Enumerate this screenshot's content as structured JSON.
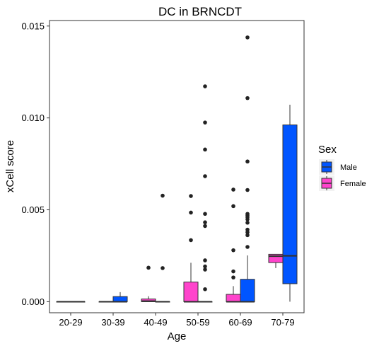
{
  "chart_data": {
    "type": "boxplot",
    "title": "DC in BRNCDT",
    "xlabel": "Age",
    "ylabel": "xCell score",
    "ylim": [
      -0.0006,
      0.0153
    ],
    "yticks": [
      "0.000",
      "0.005",
      "0.010",
      "0.015"
    ],
    "categories": [
      "20-29",
      "30-39",
      "40-49",
      "50-59",
      "60-69",
      "70-79"
    ],
    "legend": {
      "title": "Sex",
      "placement": "right",
      "entries": [
        {
          "name": "Male",
          "color": "#0055FF"
        },
        {
          "name": "Female",
          "color": "#FF44CC"
        }
      ]
    },
    "series": [
      {
        "name": "Female",
        "color": "#FF44CC",
        "boxes": [
          {
            "category": "20-29",
            "low": 0,
            "q1": 0,
            "median": 0,
            "q3": 0,
            "high": 0,
            "outliers": []
          },
          {
            "category": "30-39",
            "low": 0,
            "q1": 0,
            "median": 0,
            "q3": 0,
            "high": 0,
            "outliers": []
          },
          {
            "category": "40-49",
            "low": 0,
            "q1": 0,
            "median": 3e-05,
            "q3": 0.00015,
            "high": 0.0003,
            "outliers": [
              0.00185
            ]
          },
          {
            "category": "50-59",
            "low": 0,
            "q1": 0,
            "median": 0,
            "q3": 0.00107,
            "high": 0.00212,
            "outliers": [
              0.00335,
              0.00485,
              0.00575
            ]
          },
          {
            "category": "60-69",
            "low": 0,
            "q1": 0,
            "median": 0,
            "q3": 0.0004,
            "high": 0.00085,
            "outliers": [
              0.00132,
              0.00165,
              0.0028,
              0.0052,
              0.0061
            ]
          },
          {
            "category": "70-79",
            "low": 0.00183,
            "q1": 0.00213,
            "median": 0.00248,
            "q3": 0.00258,
            "high": 0.00258,
            "outliers": []
          }
        ]
      },
      {
        "name": "Male",
        "color": "#0055FF",
        "boxes": [
          {
            "category": "20-29",
            "low": 0,
            "q1": 0,
            "median": 0,
            "q3": 0,
            "high": 0,
            "outliers": []
          },
          {
            "category": "30-39",
            "low": 0,
            "q1": 0,
            "median": 0,
            "q3": 0.00028,
            "high": 0.00052,
            "outliers": []
          },
          {
            "category": "40-49",
            "low": 0,
            "q1": 0,
            "median": 0,
            "q3": 0,
            "high": 0,
            "outliers": [
              0.00183,
              0.00577
            ]
          },
          {
            "category": "50-59",
            "low": 0,
            "q1": 0,
            "median": 0,
            "q3": 0,
            "high": 0,
            "outliers": [
              0.00068,
              0.00175,
              0.00192,
              0.00225,
              0.00412,
              0.00432,
              0.00478,
              0.00683,
              0.00828,
              0.00975,
              0.01172
            ]
          },
          {
            "category": "60-69",
            "low": 0,
            "q1": 0,
            "median": 0,
            "q3": 0.00122,
            "high": 0.00252,
            "outliers": [
              0.00298,
              0.00362,
              0.00378,
              0.00392,
              0.0043,
              0.00448,
              0.0046,
              0.0047,
              0.00478,
              0.00608,
              0.00763,
              0.01108,
              0.01438
            ]
          },
          {
            "category": "70-79",
            "low": 0,
            "q1": 0.00098,
            "median": 0.0025,
            "q3": 0.00962,
            "high": 0.01072,
            "outliers": []
          }
        ]
      }
    ]
  }
}
